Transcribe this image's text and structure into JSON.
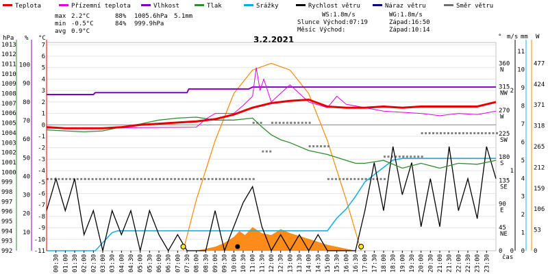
{
  "chart_data": {
    "type": "line",
    "title": "3.2.2021",
    "legend": [
      {
        "name": "Teplota",
        "color": "#e60000"
      },
      {
        "name": "Přízemní teplota",
        "color": "#e000e0"
      },
      {
        "name": "Vlhkost",
        "color": "#8000c0"
      },
      {
        "name": "Tlak",
        "color": "#2e8b2e"
      },
      {
        "name": "Srážky",
        "color": "#00b0e0"
      },
      {
        "name": "Rychlost větru",
        "color": "#000000"
      },
      {
        "name": "Náraz větru",
        "color": "#000080"
      },
      {
        "name": "Směr větru",
        "color": "#707070"
      }
    ],
    "stats": [
      {
        "label": "max",
        "temp": "2.2°C",
        "hum": "88%",
        "press": "1005.6hPa",
        "rain": "5.1mm"
      },
      {
        "label": "min",
        "temp": "-0.5°C",
        "hum": "84%",
        "press": "999.9hPa",
        "rain": ""
      },
      {
        "label": "avg",
        "temp": "0.9°C",
        "hum": "",
        "press": "",
        "rain": ""
      }
    ],
    "info": {
      "ws": "WS:1.8m/s",
      "wg": "WG:1.8m/s",
      "sun": "Slunce Východ:07:19",
      "sun_set": "Západ:16:50",
      "moon": "Měsíc  Východ:",
      "moon_set": "Západ:10:14"
    },
    "axes": {
      "left_units": [
        "hPa",
        "%",
        "°C"
      ],
      "pressure_ticks": [
        "1013",
        "1012",
        "1011",
        "1010",
        "1009",
        "1008",
        "1007",
        "1006",
        "1005",
        "1004",
        "1003",
        "1002",
        "1001",
        "1000",
        "999",
        "998",
        "997",
        "996",
        "995",
        "994",
        "993",
        "992"
      ],
      "humidity_ticks": [
        "100",
        "90",
        "80",
        "70",
        "60",
        "50",
        "40",
        "30",
        "20",
        "10"
      ],
      "temp_ticks": [
        "7",
        "6",
        "5",
        "4",
        "3",
        "2",
        "1",
        "0",
        "-1",
        "-2",
        "-3",
        "-4",
        "-5",
        "-6",
        "-7",
        "-8",
        "-9",
        "-10",
        "-11"
      ],
      "dir_unit": "°",
      "dir_ticks": [
        [
          "360",
          "N"
        ],
        [
          "315",
          "NW"
        ],
        [
          "270",
          "W"
        ],
        [
          "225",
          "SW"
        ],
        [
          "180",
          "S"
        ],
        [
          "135",
          "SE"
        ],
        [
          "90",
          "E"
        ],
        [
          "45",
          "NE"
        ],
        [
          "0",
          ""
        ]
      ],
      "wind_unit": "m/s",
      "wind_ticks": [
        "2",
        "1",
        "0"
      ],
      "rain_unit": "mm",
      "rain_ticks": [
        "11",
        "10",
        "9",
        "8",
        "7",
        "6",
        "5",
        "4",
        "3",
        "2",
        "1",
        "0"
      ],
      "solar_unit": "W",
      "solar_ticks": [
        "477",
        "424",
        "371",
        "318",
        "265",
        "212",
        "159",
        "106",
        "53",
        "0"
      ],
      "time_label": "čas",
      "time_ticks": [
        "00:30",
        "01:00",
        "01:30",
        "02:00",
        "02:30",
        "03:00",
        "03:30",
        "04:00",
        "04:30",
        "05:00",
        "05:30",
        "06:00",
        "06:30",
        "07:00",
        "07:30",
        "08:00",
        "08:30",
        "09:00",
        "09:30",
        "10:00",
        "10:30",
        "11:00",
        "11:30",
        "12:00",
        "12:30",
        "13:00",
        "13:30",
        "14:00",
        "14:30",
        "15:00",
        "15:30",
        "16:00",
        "16:30",
        "17:00",
        "17:30",
        "18:00",
        "18:30",
        "19:00",
        "19:30",
        "20:00",
        "20:30",
        "21:00",
        "21:30",
        "22:00",
        "22:30",
        "23:00",
        "23:30"
      ]
    },
    "series": {
      "temperature": {
        "x": [
          0,
          1,
          2,
          3,
          4,
          5,
          6,
          7,
          8,
          9,
          10,
          11,
          12,
          13,
          14,
          15,
          16,
          17,
          18,
          19,
          20,
          21,
          22,
          23,
          24
        ],
        "y": [
          -0.2,
          -0.3,
          -0.3,
          -0.3,
          -0.2,
          0,
          0.1,
          0.2,
          0.3,
          0.5,
          0.9,
          1.5,
          1.9,
          2.1,
          2.2,
          1.6,
          1.5,
          1.5,
          1.6,
          1.5,
          1.6,
          1.6,
          1.6,
          1.6,
          2.0
        ]
      },
      "ground_temperature": {
        "x": [
          0,
          8,
          8.5,
          9,
          10,
          10.5,
          11,
          11.2,
          11.4,
          11.6,
          12,
          13,
          14,
          15,
          15.5,
          16,
          18,
          20,
          21,
          22,
          23,
          24
        ],
        "y": [
          -0.3,
          -0.2,
          0.5,
          1.0,
          1.0,
          1.7,
          2.5,
          5.0,
          3.0,
          4.0,
          2.0,
          3.5,
          2.0,
          1.5,
          2.5,
          1.8,
          1.2,
          1.0,
          0.8,
          1.0,
          0.9,
          1.2
        ]
      },
      "humidity": {
        "x": [
          0,
          2.5,
          2.6,
          7.5,
          7.6,
          10.8,
          11.0,
          24
        ],
        "y": [
          84,
          84,
          85,
          85,
          87,
          87,
          88,
          88
        ]
      },
      "pressure": {
        "x": [
          0,
          1,
          2,
          3,
          4,
          5,
          6,
          7,
          8,
          9,
          10,
          11,
          11.5,
          12,
          12.5,
          13,
          14,
          15,
          16,
          16.5,
          17,
          18,
          19,
          20,
          21,
          22,
          23,
          24
        ],
        "y": [
          1004.3,
          1004.2,
          1004.1,
          1004.2,
          1004.6,
          1004.9,
          1005.3,
          1005.5,
          1005.6,
          1005.3,
          1005.3,
          1005.5,
          1004.6,
          1003.8,
          1003.3,
          1003.0,
          1002.2,
          1001.8,
          1001.2,
          1000.9,
          1000.9,
          1001.2,
          1000.4,
          1000.9,
          1000.4,
          1000.9,
          1000.8,
          1001.2
        ]
      },
      "precipitation": {
        "x": [
          0,
          2.6,
          3.5,
          3.8,
          15,
          15.5,
          16,
          16.5,
          17,
          18,
          18.5,
          19,
          24
        ],
        "y": [
          0,
          0,
          1.0,
          1.1,
          1.1,
          1.8,
          2.3,
          3.0,
          3.8,
          4.6,
          5.0,
          5.1,
          5.1
        ]
      },
      "wind_speed": {
        "x": [
          0,
          0.5,
          1,
          1.5,
          2,
          2.5,
          3,
          3.5,
          4,
          4.5,
          5,
          5.5,
          6,
          6.5,
          7,
          7.5,
          8,
          8.5,
          9,
          9.5,
          10,
          10.5,
          11,
          11.5,
          12,
          12.5,
          13,
          13.5,
          14,
          14.5,
          15,
          15.5,
          16,
          16.5,
          17,
          17.5,
          18,
          18.5,
          19,
          19.5,
          20,
          20.5,
          21,
          21.5,
          22,
          22.5,
          23,
          23.5,
          24
        ],
        "y": [
          0.5,
          0.9,
          0.5,
          0.9,
          0.2,
          0.5,
          0,
          0.5,
          0.2,
          0.5,
          0,
          0.5,
          0.2,
          0,
          0.2,
          0,
          0,
          0,
          0.5,
          0,
          0.3,
          0.6,
          0.8,
          0.3,
          0,
          0.2,
          0,
          0.2,
          0,
          0.2,
          0,
          0,
          0,
          0,
          0.5,
          1.1,
          0.5,
          1.3,
          0.7,
          1.1,
          0.3,
          0.9,
          0.3,
          1.3,
          0.5,
          0.9,
          0.4,
          1.3,
          0.9
        ]
      },
      "wind_direction": {
        "x": [
          0,
          1,
          2,
          3,
          4,
          5,
          6,
          7,
          8,
          9,
          10,
          11,
          11.5,
          12,
          13,
          14,
          15,
          16,
          17,
          18,
          19,
          20,
          21,
          22,
          23,
          24
        ],
        "y": [
          137,
          137,
          137,
          137,
          137,
          137,
          137,
          137,
          137,
          137,
          137,
          245,
          190,
          245,
          245,
          200,
          137,
          137,
          137,
          180,
          180,
          225,
          225,
          225,
          225,
          225
        ]
      },
      "solar": {
        "x": [
          7.3,
          8,
          9,
          10,
          11,
          12,
          13,
          14,
          15,
          16,
          16.8
        ],
        "y": [
          0,
          130,
          280,
          400,
          460,
          477,
          460,
          400,
          280,
          130,
          0
        ]
      },
      "solar_measured": {
        "x": [
          8,
          9,
          9.5,
          10,
          10.3,
          10.6,
          11,
          11.5,
          12,
          12.5,
          13,
          14,
          15,
          16,
          16.5
        ],
        "y": [
          0,
          10,
          20,
          35,
          50,
          40,
          60,
          45,
          40,
          55,
          45,
          30,
          15,
          5,
          0
        ]
      }
    }
  }
}
